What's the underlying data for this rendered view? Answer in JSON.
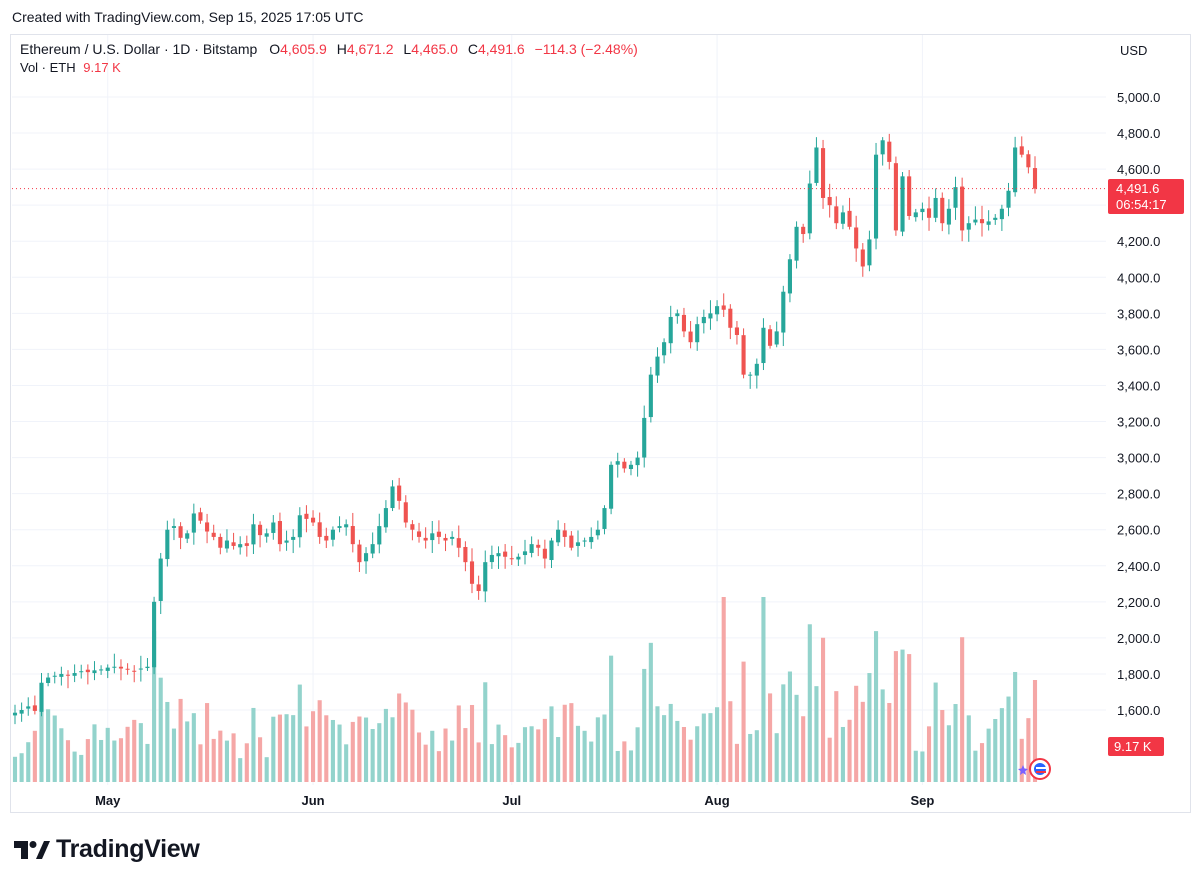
{
  "header": {
    "created": "Created with TradingView.com, Sep 15, 2025 17:05 UTC"
  },
  "legend": {
    "symbol": "Ethereum / U.S. Dollar · 1D · Bitstamp",
    "o_label": "O",
    "o_value": "4,605.9",
    "h_label": "H",
    "h_value": "4,671.2",
    "l_label": "L",
    "l_value": "4,465.0",
    "c_label": "C",
    "c_value": "4,491.6",
    "change": "−114.3 (−2.48%)",
    "vol_label": "Vol · ETH",
    "vol_value": "9.17 K"
  },
  "axis": {
    "currency": "USD",
    "price_tag": "4,491.6",
    "countdown": "06:54:17",
    "vol_tag": "9.17 K"
  },
  "brand": {
    "name": "TradingView"
  },
  "colors": {
    "up": "#26a69a",
    "down": "#ef5350",
    "up_vol": "#93d3cc",
    "down_vol": "#f5a7a6",
    "grid": "#f0f3fa"
  },
  "icons": [
    "tradingview-logo-icon",
    "star-icon",
    "flag-icon"
  ],
  "chart_data": {
    "type": "candlestick",
    "title": "Ethereum / U.S. Dollar · 1D · Bitstamp",
    "xlabel": "",
    "ylabel": "",
    "ylim": [
      1400,
      5100
    ],
    "y_ticks": [
      "1,600.0",
      "1,800.0",
      "2,000.0",
      "2,200.0",
      "2,400.0",
      "2,600.0",
      "2,800.0",
      "3,000.0",
      "3,200.0",
      "3,400.0",
      "3,600.0",
      "3,800.0",
      "4,000.0",
      "4,200.0",
      "4,400.0",
      "4,600.0",
      "4,800.0",
      "5,000.0"
    ],
    "x_ticks": [
      {
        "label": "May",
        "index": 14
      },
      {
        "label": "Jun",
        "index": 45
      },
      {
        "label": "Jul",
        "index": 75
      },
      {
        "label": "Aug",
        "index": 106
      },
      {
        "label": "Sep",
        "index": 137
      }
    ],
    "current_price": 4491.6,
    "grid": true,
    "candles_close": [
      1585,
      1600,
      1620,
      1595,
      1750,
      1780,
      1790,
      1800,
      1795,
      1805,
      1815,
      1810,
      1820,
      1825,
      1835,
      1840,
      1830,
      1825,
      1815,
      1830,
      1840,
      2200,
      2440,
      2600,
      2620,
      2555,
      2580,
      2690,
      2650,
      2590,
      2560,
      2500,
      2540,
      2510,
      2520,
      2510,
      2630,
      2570,
      2580,
      2640,
      2520,
      2540,
      2560,
      2680,
      2660,
      2640,
      2560,
      2540,
      2600,
      2620,
      2630,
      2520,
      2420,
      2470,
      2520,
      2620,
      2720,
      2840,
      2760,
      2640,
      2600,
      2560,
      2540,
      2580,
      2560,
      2540,
      2560,
      2500,
      2420,
      2300,
      2260,
      2420,
      2460,
      2470,
      2450,
      2440,
      2450,
      2480,
      2520,
      2500,
      2440,
      2540,
      2600,
      2560,
      2500,
      2530,
      2540,
      2560,
      2600,
      2720,
      2960,
      2980,
      2940,
      2960,
      3000,
      3220,
      3460,
      3560,
      3640,
      3780,
      3800,
      3700,
      3640,
      3740,
      3780,
      3800,
      3840,
      3820,
      3720,
      3680,
      3460,
      3460,
      3520,
      3720,
      3620,
      3700,
      3920,
      4100,
      4280,
      4240,
      4520,
      4720,
      4440,
      4400,
      4300,
      4360,
      4280,
      4160,
      4060,
      4210,
      4680,
      4760,
      4640,
      4260,
      4560,
      4340,
      4360,
      4380,
      4330,
      4440,
      4300,
      4380,
      4500,
      4260,
      4300,
      4320,
      4300,
      4310,
      4330,
      4380,
      4480,
      4720,
      4680,
      4610,
      4491.6
    ],
    "volume_note": "Daily volume bars plotted below price; last bar 9.17 K ETH"
  }
}
